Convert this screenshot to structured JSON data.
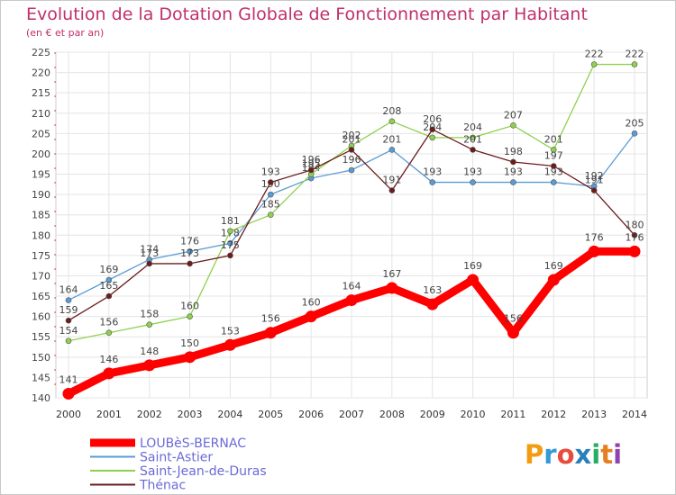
{
  "chart_data": {
    "type": "line",
    "title": "Evolution de la Dotation Globale de Fonctionnement par Habitant",
    "subtitle": "(en € et par an)",
    "xlabel": "",
    "ylabel": "",
    "x": [
      "2000",
      "2001",
      "2002",
      "2003",
      "2004",
      "2005",
      "2006",
      "2007",
      "2008",
      "2009",
      "2010",
      "2011",
      "2012",
      "2013",
      "2014"
    ],
    "ylim": [
      140,
      225
    ],
    "yticks": [
      140,
      145,
      150,
      155,
      160,
      165,
      170,
      175,
      180,
      185,
      190,
      195,
      200,
      205,
      210,
      215,
      220,
      225
    ],
    "grid": true,
    "legend_position": "bottom-left",
    "series": [
      {
        "name": "LOUBèS-BERNAC",
        "color": "#ff0000",
        "values": [
          141,
          146,
          148,
          150,
          153,
          156,
          160,
          164,
          167,
          163,
          169,
          156,
          169,
          176,
          176
        ]
      },
      {
        "name": "Saint-Astier",
        "color": "#5a9bd5",
        "values": [
          164,
          169,
          174,
          176,
          178,
          190,
          194,
          196,
          201,
          193,
          193,
          193,
          193,
          192,
          205
        ]
      },
      {
        "name": "Saint-Jean-de-Duras",
        "color": "#8fd14f",
        "values": [
          154,
          156,
          158,
          160,
          181,
          185,
          195,
          202,
          208,
          204,
          204,
          207,
          201,
          222,
          222
        ]
      },
      {
        "name": "Thénac",
        "color": "#6b1c1c",
        "values": [
          159,
          165,
          173,
          173,
          175,
          193,
          196,
          201,
          191,
          206,
          201,
          198,
          197,
          191,
          180
        ]
      }
    ]
  },
  "logo": {
    "text": "Proxiti",
    "letters": [
      "P",
      "r",
      "o",
      "x",
      "i",
      "t",
      "i"
    ],
    "colors": [
      "#f39c12",
      "#3498db",
      "#e74c3c",
      "#2980b9",
      "#27ae60",
      "#e67e22",
      "#8e44ad"
    ]
  }
}
